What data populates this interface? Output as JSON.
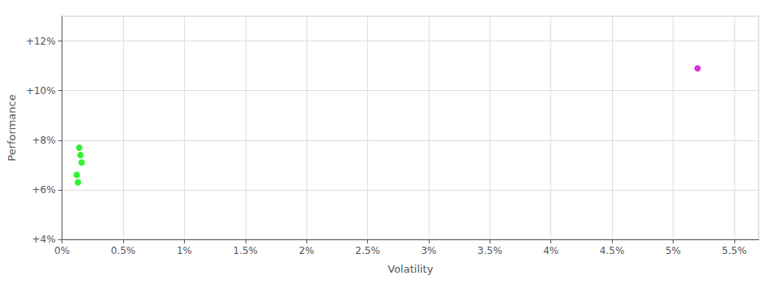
{
  "chart_data": {
    "type": "scatter",
    "xlabel": "Volatility",
    "ylabel": "Performance",
    "xlim": [
      0.0,
      0.057
    ],
    "ylim": [
      0.04,
      0.13
    ],
    "xticks": [
      {
        "value": 0.0,
        "label": "0%"
      },
      {
        "value": 0.005,
        "label": "0.5%"
      },
      {
        "value": 0.01,
        "label": "1%"
      },
      {
        "value": 0.015,
        "label": "1.5%"
      },
      {
        "value": 0.02,
        "label": "2%"
      },
      {
        "value": 0.025,
        "label": "2.5%"
      },
      {
        "value": 0.03,
        "label": "3%"
      },
      {
        "value": 0.035,
        "label": "3.5%"
      },
      {
        "value": 0.04,
        "label": "4%"
      },
      {
        "value": 0.045,
        "label": "4.5%"
      },
      {
        "value": 0.05,
        "label": "5%"
      },
      {
        "value": 0.055,
        "label": "5.5%"
      }
    ],
    "yticks": [
      {
        "value": 0.04,
        "label": "+4%"
      },
      {
        "value": 0.06,
        "label": "+6%"
      },
      {
        "value": 0.08,
        "label": "+8%"
      },
      {
        "value": 0.1,
        "label": "+10%"
      },
      {
        "value": 0.12,
        "label": "+12%"
      }
    ],
    "grid": true,
    "series": [
      {
        "color": "#00ee00",
        "x": [
          0.0014,
          0.0015,
          0.0016,
          0.0012,
          0.0013
        ],
        "values": [
          0.077,
          0.074,
          0.071,
          0.066,
          0.063
        ]
      },
      {
        "color": "#cc00cc",
        "x": [
          0.052
        ],
        "values": [
          0.109
        ]
      }
    ]
  }
}
